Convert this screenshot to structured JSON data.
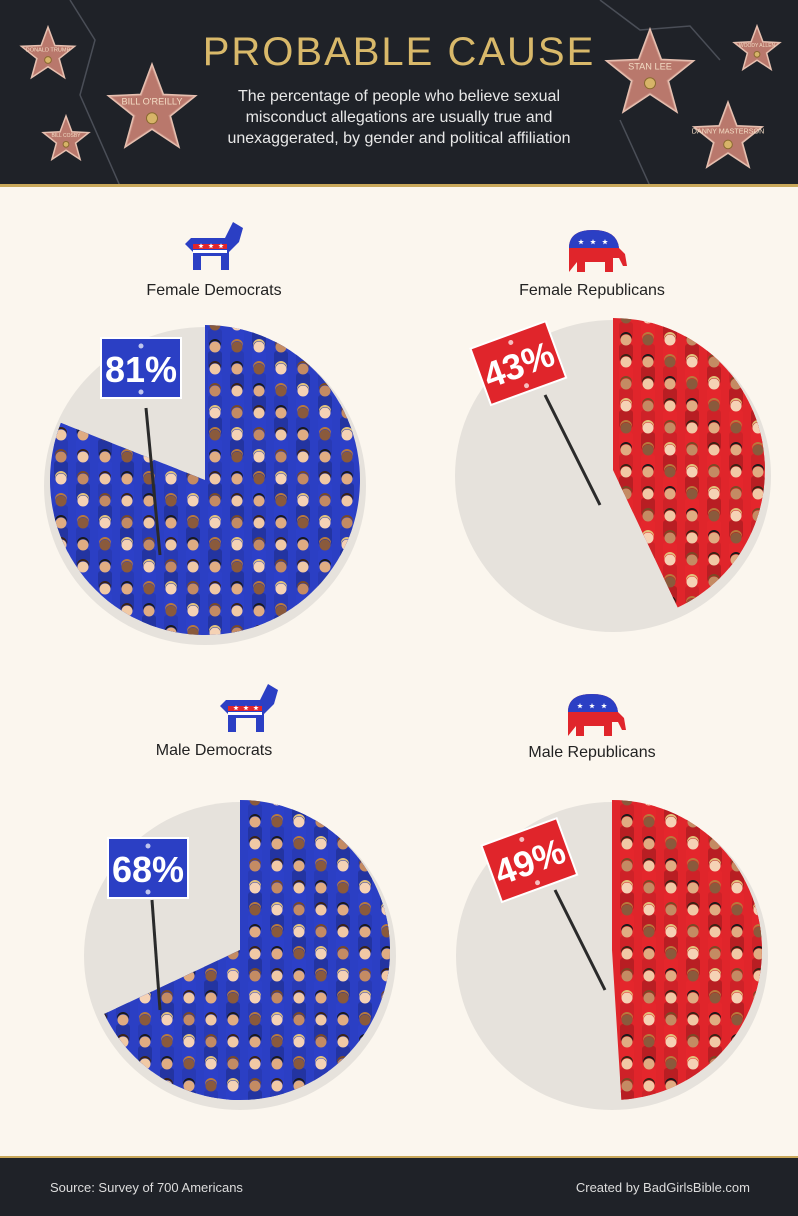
{
  "header": {
    "title": "PROBABLE CAUSE",
    "subtitle": "The percentage of people who believe sexual misconduct allegations are usually true and unexaggerated, by gender and political affiliation",
    "stars": [
      "DONALD TRUMP",
      "BILL O'REILLY",
      "BILL COSBY",
      "STAN LEE",
      "WOODY ALLEN",
      "DANNY MASTERSON"
    ]
  },
  "chart_data": {
    "type": "pie",
    "panels": [
      {
        "label": "Female Democrats",
        "value": 81,
        "display": "81%",
        "party": "democrat",
        "color": "#2b3fc4"
      },
      {
        "label": "Female Republicans",
        "value": 43,
        "display": "43%",
        "party": "republican",
        "color": "#e0252b"
      },
      {
        "label": "Male Democrats",
        "value": 68,
        "display": "68%",
        "party": "democrat",
        "color": "#2b3fc4"
      },
      {
        "label": "Male Republicans",
        "value": 49,
        "display": "49%",
        "party": "republican",
        "color": "#e0252b"
      }
    ]
  },
  "footer": {
    "source": "Source: Survey of 700 Americans",
    "credit": "Created by BadGirlsBible.com"
  }
}
